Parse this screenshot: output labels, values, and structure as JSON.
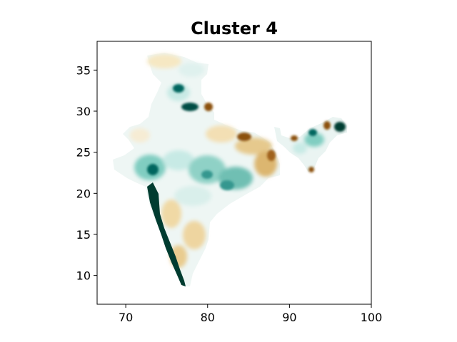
{
  "chart_data": {
    "type": "heatmap",
    "title": "Cluster 4",
    "xlabel": "",
    "ylabel": "",
    "xlim": [
      66.5,
      100
    ],
    "ylim": [
      6.5,
      38.5
    ],
    "x_ticks": [
      70,
      80,
      90,
      100
    ],
    "y_ticks": [
      10,
      15,
      20,
      25,
      30,
      35
    ],
    "grid": false,
    "colormap": "BrBG",
    "colors": {
      "strong_negative": "#543005",
      "negative": "#bf812d",
      "weak_negative": "#f6e8c3",
      "neutral": "#f5f5f5",
      "weak_positive": "#c7eae5",
      "positive": "#35978f",
      "strong_positive": "#003c30"
    }
  }
}
